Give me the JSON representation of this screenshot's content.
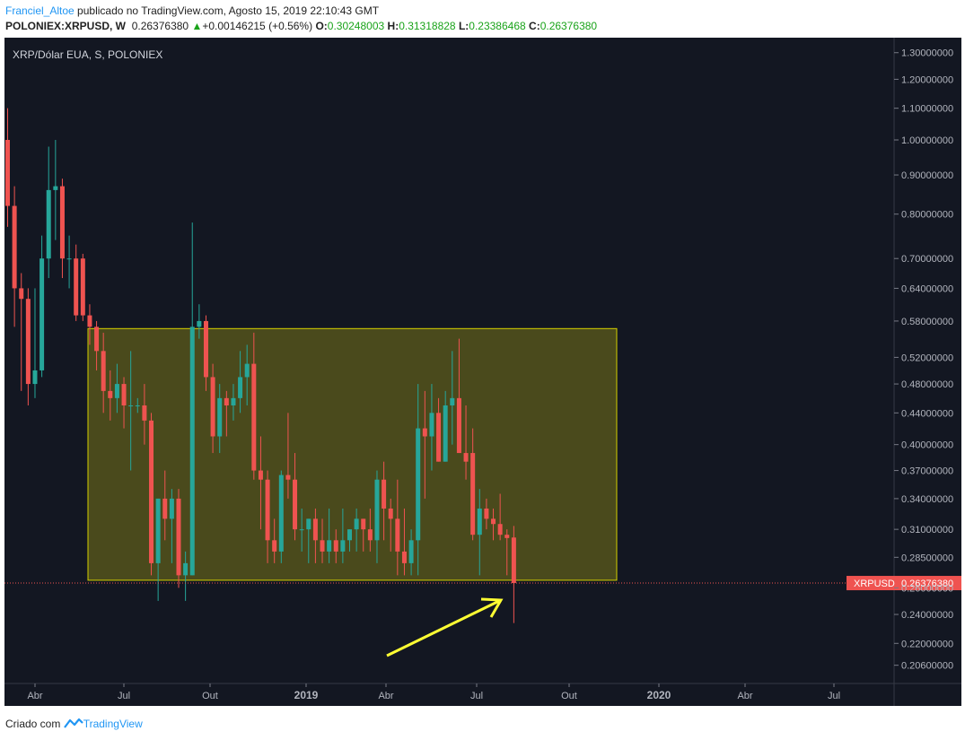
{
  "header": {
    "author": "Franciel_Altoe",
    "published": " publicado no TradingView.com, Agosto 15, 2019 22:10:43 GMT",
    "symbol": "POLONIEX:XRPUSD, W",
    "last": "0.26376380",
    "change": "+0.00146215 (+0.56%)",
    "o_label": "O:",
    "o_value": "0.30248003",
    "h_label": "H:",
    "h_value": "0.31318828",
    "l_label": "L:",
    "l_value": "0.23386468",
    "c_label": "C:",
    "c_value": "0.26376380"
  },
  "footer": {
    "created": "Criado com",
    "brand": "TradingView"
  },
  "chart_data": {
    "type": "candlestick",
    "title": "XRP/Dólar EUA, S, POLONIEX",
    "y_scale": "log",
    "ylim": [
      0.195,
      1.36
    ],
    "y_ticks": [
      "1.30000000",
      "1.20000000",
      "1.10000000",
      "1.00000000",
      "0.90000000",
      "0.80000000",
      "0.70000000",
      "0.64000000",
      "0.58000000",
      "0.52000000",
      "0.48000000",
      "0.44000000",
      "0.40000000",
      "0.37000000",
      "0.34000000",
      "0.31000000",
      "0.28500000",
      "0.26000000",
      "0.24000000",
      "0.22000000",
      "0.20600000"
    ],
    "x_ticks": [
      "Abr",
      "Jul",
      "Out",
      "2019",
      "Abr",
      "Jul",
      "Out",
      "2020",
      "Abr",
      "Jul"
    ],
    "price_label": "XRPUSD",
    "price_value": "0.26376380",
    "current_price": 0.26376,
    "rectangle": {
      "y_top": 0.567,
      "y_bottom": 0.266
    },
    "colors": {
      "up": "#26a69a",
      "down": "#ef5350",
      "background": "#131722",
      "rect_fill": "#4a4a1c",
      "rect_stroke": "#d4d000",
      "arrow": "#ffff33"
    },
    "candles": [
      {
        "o": 1.0,
        "h": 1.1,
        "l": 0.77,
        "c": 0.82
      },
      {
        "o": 0.82,
        "h": 0.87,
        "l": 0.57,
        "c": 0.64
      },
      {
        "o": 0.64,
        "h": 0.67,
        "l": 0.47,
        "c": 0.62
      },
      {
        "o": 0.62,
        "h": 0.64,
        "l": 0.45,
        "c": 0.48
      },
      {
        "o": 0.48,
        "h": 0.64,
        "l": 0.46,
        "c": 0.5
      },
      {
        "o": 0.5,
        "h": 0.75,
        "l": 0.49,
        "c": 0.7
      },
      {
        "o": 0.7,
        "h": 0.98,
        "l": 0.66,
        "c": 0.86
      },
      {
        "o": 0.86,
        "h": 1.0,
        "l": 0.74,
        "c": 0.87
      },
      {
        "o": 0.87,
        "h": 0.89,
        "l": 0.66,
        "c": 0.7
      },
      {
        "o": 0.7,
        "h": 0.75,
        "l": 0.64,
        "c": 0.7
      },
      {
        "o": 0.7,
        "h": 0.73,
        "l": 0.58,
        "c": 0.59
      },
      {
        "o": 0.7,
        "h": 0.71,
        "l": 0.58,
        "c": 0.59
      },
      {
        "o": 0.59,
        "h": 0.61,
        "l": 0.54,
        "c": 0.57
      },
      {
        "o": 0.57,
        "h": 0.58,
        "l": 0.5,
        "c": 0.53
      },
      {
        "o": 0.53,
        "h": 0.56,
        "l": 0.44,
        "c": 0.47
      },
      {
        "o": 0.47,
        "h": 0.5,
        "l": 0.43,
        "c": 0.46
      },
      {
        "o": 0.46,
        "h": 0.51,
        "l": 0.44,
        "c": 0.48
      },
      {
        "o": 0.48,
        "h": 0.49,
        "l": 0.42,
        "c": 0.45
      },
      {
        "o": 0.45,
        "h": 0.53,
        "l": 0.37,
        "c": 0.45
      },
      {
        "o": 0.45,
        "h": 0.46,
        "l": 0.44,
        "c": 0.45
      },
      {
        "o": 0.45,
        "h": 0.48,
        "l": 0.4,
        "c": 0.43
      },
      {
        "o": 0.43,
        "h": 0.44,
        "l": 0.27,
        "c": 0.28
      },
      {
        "o": 0.28,
        "h": 0.34,
        "l": 0.25,
        "c": 0.34
      },
      {
        "o": 0.34,
        "h": 0.37,
        "l": 0.3,
        "c": 0.32
      },
      {
        "o": 0.32,
        "h": 0.35,
        "l": 0.28,
        "c": 0.34
      },
      {
        "o": 0.34,
        "h": 0.35,
        "l": 0.26,
        "c": 0.27
      },
      {
        "o": 0.27,
        "h": 0.29,
        "l": 0.25,
        "c": 0.28
      },
      {
        "o": 0.27,
        "h": 0.78,
        "l": 0.27,
        "c": 0.57
      },
      {
        "o": 0.57,
        "h": 0.61,
        "l": 0.55,
        "c": 0.58
      },
      {
        "o": 0.58,
        "h": 0.59,
        "l": 0.47,
        "c": 0.49
      },
      {
        "o": 0.49,
        "h": 0.51,
        "l": 0.39,
        "c": 0.41
      },
      {
        "o": 0.41,
        "h": 0.48,
        "l": 0.39,
        "c": 0.46
      },
      {
        "o": 0.46,
        "h": 0.47,
        "l": 0.41,
        "c": 0.45
      },
      {
        "o": 0.45,
        "h": 0.48,
        "l": 0.43,
        "c": 0.46
      },
      {
        "o": 0.46,
        "h": 0.53,
        "l": 0.44,
        "c": 0.49
      },
      {
        "o": 0.49,
        "h": 0.54,
        "l": 0.45,
        "c": 0.51
      },
      {
        "o": 0.51,
        "h": 0.56,
        "l": 0.36,
        "c": 0.37
      },
      {
        "o": 0.37,
        "h": 0.41,
        "l": 0.31,
        "c": 0.36
      },
      {
        "o": 0.36,
        "h": 0.37,
        "l": 0.28,
        "c": 0.3
      },
      {
        "o": 0.3,
        "h": 0.32,
        "l": 0.28,
        "c": 0.29
      },
      {
        "o": 0.29,
        "h": 0.37,
        "l": 0.28,
        "c": 0.365
      },
      {
        "o": 0.365,
        "h": 0.44,
        "l": 0.34,
        "c": 0.36
      },
      {
        "o": 0.36,
        "h": 0.39,
        "l": 0.3,
        "c": 0.31
      },
      {
        "o": 0.31,
        "h": 0.33,
        "l": 0.29,
        "c": 0.31
      },
      {
        "o": 0.31,
        "h": 0.32,
        "l": 0.28,
        "c": 0.32
      },
      {
        "o": 0.32,
        "h": 0.33,
        "l": 0.28,
        "c": 0.3
      },
      {
        "o": 0.3,
        "h": 0.32,
        "l": 0.28,
        "c": 0.29
      },
      {
        "o": 0.29,
        "h": 0.33,
        "l": 0.28,
        "c": 0.3
      },
      {
        "o": 0.3,
        "h": 0.31,
        "l": 0.28,
        "c": 0.29
      },
      {
        "o": 0.29,
        "h": 0.33,
        "l": 0.28,
        "c": 0.3
      },
      {
        "o": 0.3,
        "h": 0.31,
        "l": 0.29,
        "c": 0.31
      },
      {
        "o": 0.31,
        "h": 0.33,
        "l": 0.29,
        "c": 0.32
      },
      {
        "o": 0.32,
        "h": 0.32,
        "l": 0.29,
        "c": 0.31
      },
      {
        "o": 0.31,
        "h": 0.33,
        "l": 0.29,
        "c": 0.3
      },
      {
        "o": 0.3,
        "h": 0.37,
        "l": 0.28,
        "c": 0.36
      },
      {
        "o": 0.36,
        "h": 0.38,
        "l": 0.3,
        "c": 0.33
      },
      {
        "o": 0.33,
        "h": 0.34,
        "l": 0.29,
        "c": 0.32
      },
      {
        "o": 0.32,
        "h": 0.36,
        "l": 0.27,
        "c": 0.29
      },
      {
        "o": 0.29,
        "h": 0.33,
        "l": 0.27,
        "c": 0.28
      },
      {
        "o": 0.28,
        "h": 0.31,
        "l": 0.27,
        "c": 0.3
      },
      {
        "o": 0.3,
        "h": 0.48,
        "l": 0.27,
        "c": 0.42
      },
      {
        "o": 0.42,
        "h": 0.47,
        "l": 0.34,
        "c": 0.41
      },
      {
        "o": 0.41,
        "h": 0.48,
        "l": 0.37,
        "c": 0.44
      },
      {
        "o": 0.44,
        "h": 0.46,
        "l": 0.38,
        "c": 0.38
      },
      {
        "o": 0.38,
        "h": 0.47,
        "l": 0.38,
        "c": 0.45
      },
      {
        "o": 0.45,
        "h": 0.53,
        "l": 0.4,
        "c": 0.46
      },
      {
        "o": 0.46,
        "h": 0.55,
        "l": 0.39,
        "c": 0.39
      },
      {
        "o": 0.39,
        "h": 0.45,
        "l": 0.36,
        "c": 0.38
      },
      {
        "o": 0.39,
        "h": 0.42,
        "l": 0.3,
        "c": 0.305
      },
      {
        "o": 0.305,
        "h": 0.35,
        "l": 0.27,
        "c": 0.33
      },
      {
        "o": 0.33,
        "h": 0.34,
        "l": 0.31,
        "c": 0.32
      },
      {
        "o": 0.32,
        "h": 0.33,
        "l": 0.3,
        "c": 0.315
      },
      {
        "o": 0.315,
        "h": 0.345,
        "l": 0.3,
        "c": 0.305
      },
      {
        "o": 0.305,
        "h": 0.31,
        "l": 0.27,
        "c": 0.302
      },
      {
        "o": 0.30248,
        "h": 0.31319,
        "l": 0.23386,
        "c": 0.26376
      }
    ]
  }
}
